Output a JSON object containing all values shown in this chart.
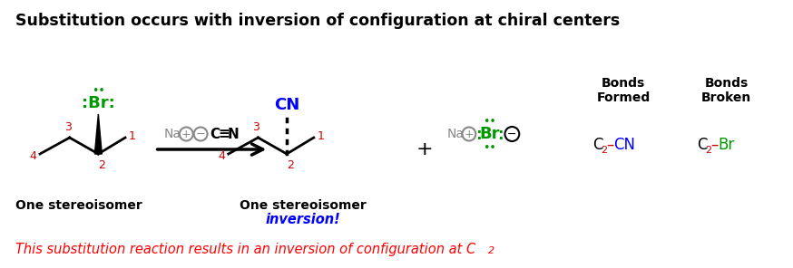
{
  "title": "Substitution occurs with inversion of configuration at chiral centers",
  "title_fontsize": 12.5,
  "title_fontweight": "bold",
  "bg_color": "#ffffff",
  "bottom_italic_text": "This substitution reaction results in an inversion of configuration at C",
  "bottom_italic_sub": "2",
  "bottom_color": "#ff0000",
  "inversion_text": "inversion!",
  "inversion_color": "#0000ff",
  "one_stereo_left": "One stereoisomer",
  "one_stereo_right": "One stereoisomer",
  "bonds_formed_label": "Bonds\nFormed",
  "bonds_broken_label": "Bonds\nBroken",
  "red": "#cc0000",
  "green": "#009900",
  "blue": "#0000ff",
  "gray": "#888888",
  "black": "#000000"
}
